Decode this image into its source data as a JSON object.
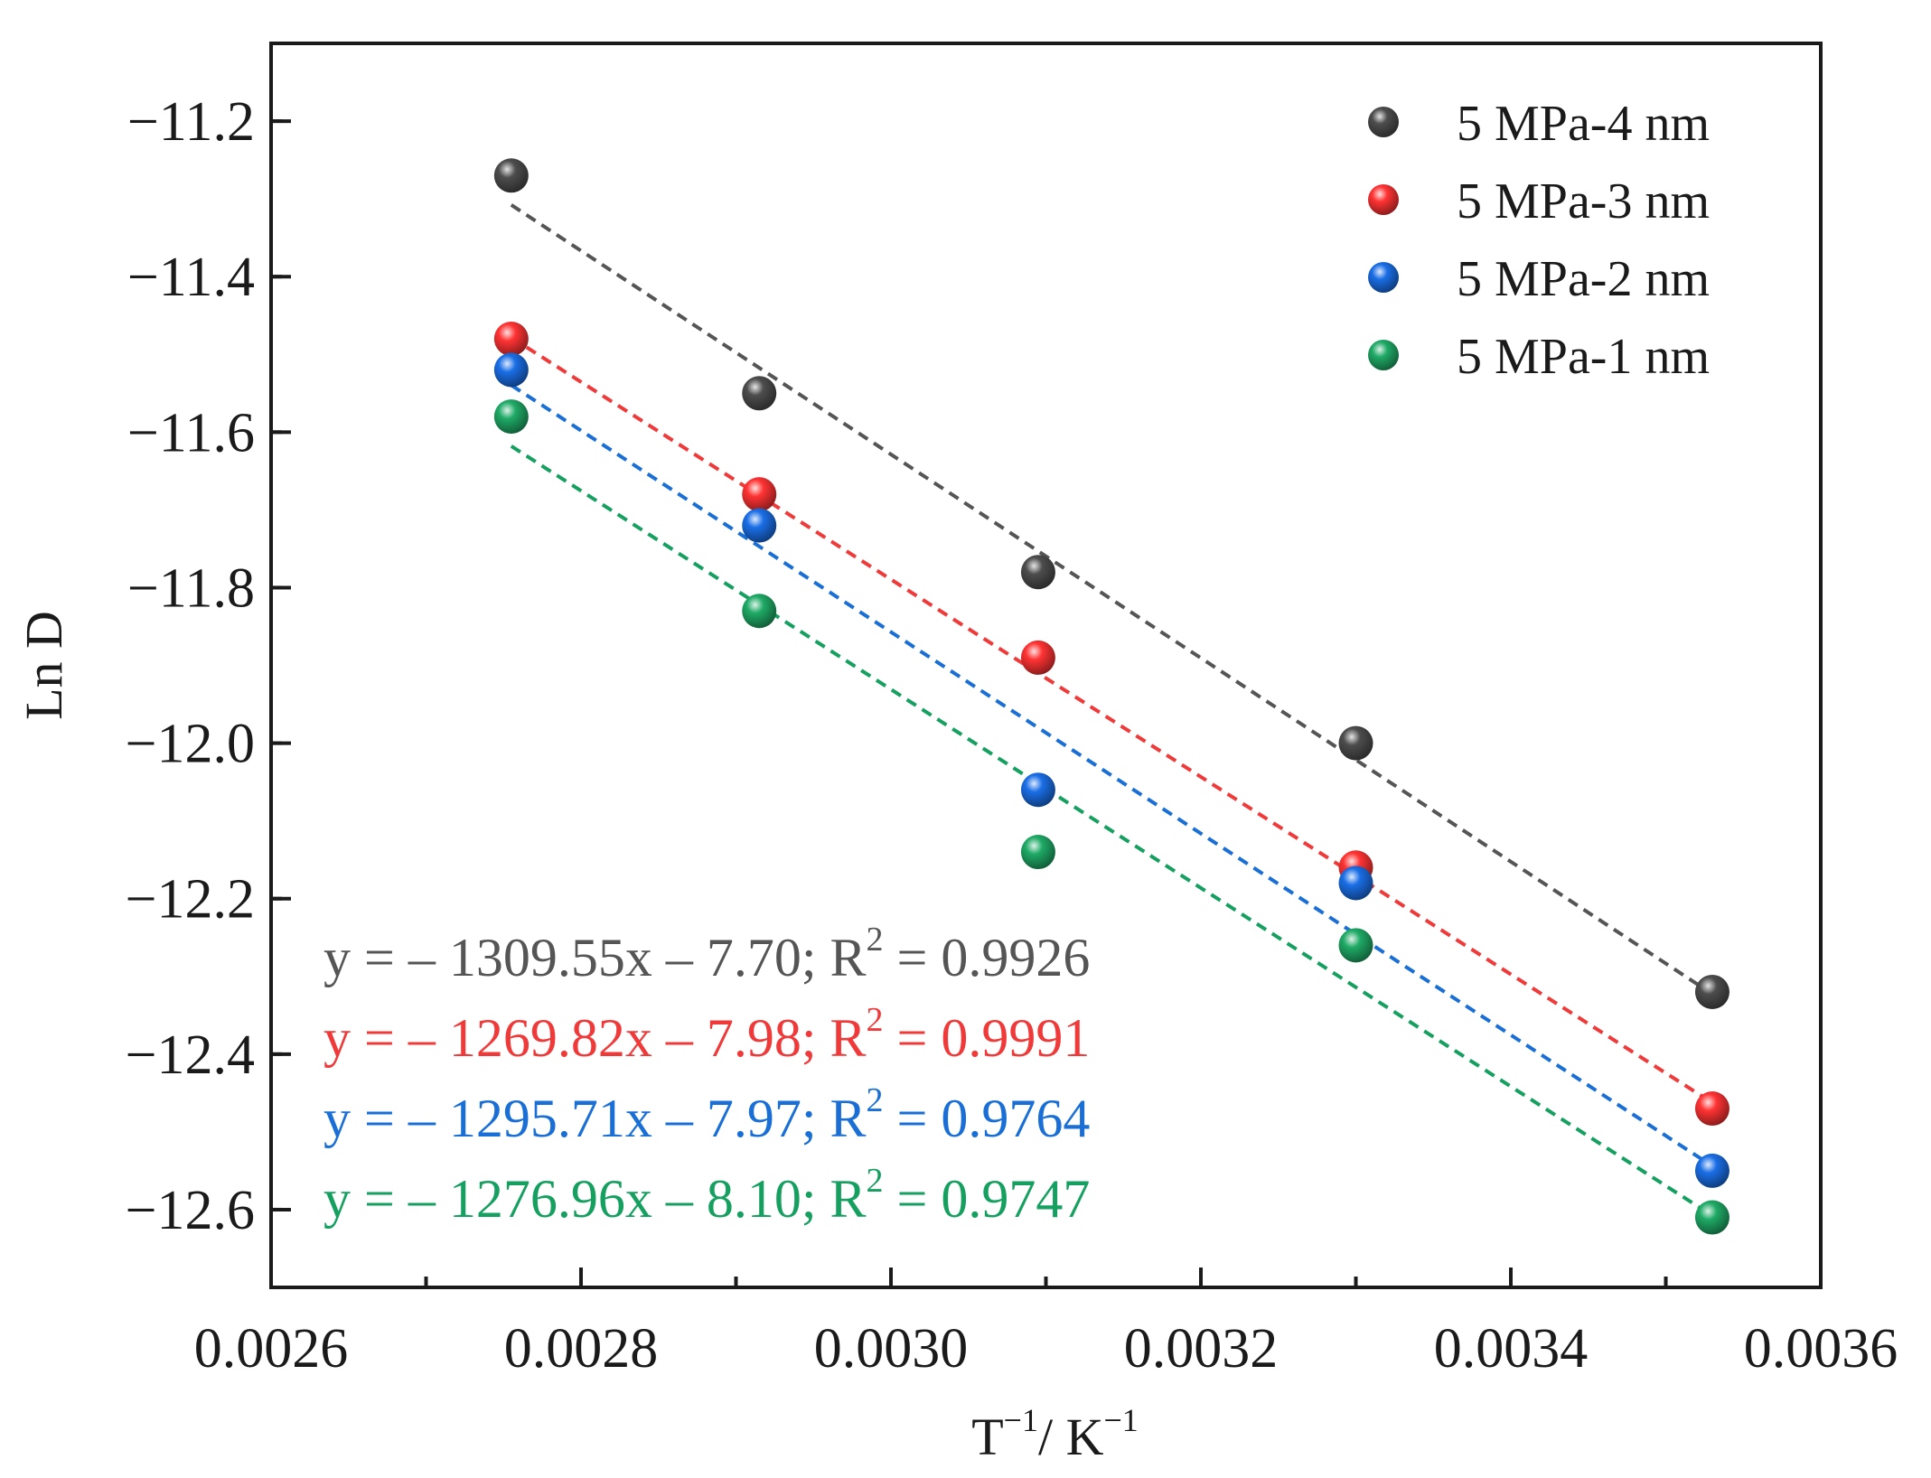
{
  "chart_data": {
    "type": "scatter",
    "title": "",
    "xlabel": {
      "base1": "T",
      "sup1": "−1",
      "mid": "/ K",
      "sup2": "−1"
    },
    "ylabel": "Ln D",
    "xlim": [
      0.0026,
      0.0036
    ],
    "ylim": [
      -12.7,
      -11.1
    ],
    "x_ticks": [
      0.0026,
      0.0028,
      0.003,
      0.0032,
      0.0034,
      0.0036
    ],
    "x_tick_labels": [
      "0.0026",
      "0.0028",
      "0.0030",
      "0.0032",
      "0.0034",
      "0.0036"
    ],
    "y_ticks": [
      -11.2,
      -11.4,
      -11.6,
      -11.8,
      -12.0,
      -12.2,
      -12.4,
      -12.6
    ],
    "y_tick_labels": [
      "−11.2",
      "−11.4",
      "−11.6",
      "−11.8",
      "−12.0",
      "−12.2",
      "−12.4",
      "−12.6"
    ],
    "legend_position": "top-right",
    "grid": false,
    "x": [
      0.002755,
      0.002915,
      0.003095,
      0.0033,
      0.00353
    ],
    "series": [
      {
        "name": "5 MPa-4 nm",
        "color": "#4d4d4d",
        "line_color": "#555555",
        "values": [
          -11.27,
          -11.55,
          -11.78,
          -12.0,
          -12.32
        ],
        "fit": {
          "slope": -1309.55,
          "intercept": -7.7
        },
        "equation": {
          "lhs": "y = – 1309.55x – 7.70; R",
          "sup": "2",
          "rhs": " = 0.9926"
        }
      },
      {
        "name": "5 MPa-3 nm",
        "color": "#ff3333",
        "line_color": "#f03a3a",
        "values": [
          -11.48,
          -11.68,
          -11.89,
          -12.16,
          -12.47
        ],
        "fit": {
          "slope": -1269.82,
          "intercept": -7.98
        },
        "equation": {
          "lhs": "y = – 1269.82x – 7.98; R",
          "sup": "2",
          "rhs": " = 0.9991"
        }
      },
      {
        "name": "5 MPa-2 nm",
        "color": "#1a6ee6",
        "line_color": "#1a6fd6",
        "values": [
          -11.52,
          -11.72,
          -12.06,
          -12.18,
          -12.55
        ],
        "fit": {
          "slope": -1295.71,
          "intercept": -7.97
        },
        "equation": {
          "lhs": "y = – 1295.71x – 7.97; R",
          "sup": "2",
          "rhs": " = 0.9764"
        }
      },
      {
        "name": "5 MPa-1 nm",
        "color": "#1faa66",
        "line_color": "#15a060",
        "values": [
          -11.58,
          -11.83,
          -12.14,
          -12.26,
          -12.61
        ],
        "fit": {
          "slope": -1276.96,
          "intercept": -8.1
        },
        "equation": {
          "lhs": "y = – 1276.96x – 8.10; R",
          "sup": "2",
          "rhs": " = 0.9747"
        }
      }
    ]
  }
}
